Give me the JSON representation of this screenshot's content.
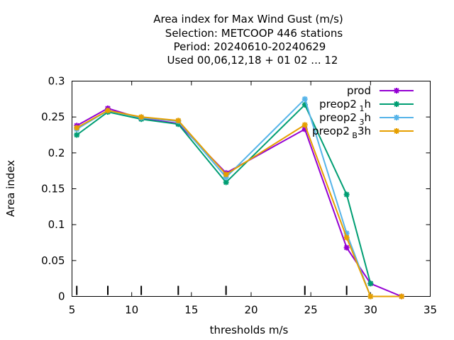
{
  "chart_data": {
    "type": "line",
    "title_lines": [
      "Area index  for Max Wind Gust (m/s)",
      "Selection: METCOOP    446 stations",
      "Period: 20240610-20240629",
      "Used  00,06,12,18 + 01 02 ... 12"
    ],
    "xlabel": "thresholds m/s",
    "ylabel": "Area index",
    "xlim": [
      5,
      35
    ],
    "ylim": [
      0,
      0.3
    ],
    "x_ticks": [
      "5",
      "10",
      "15",
      "20",
      "25",
      "30",
      "35"
    ],
    "y_ticks": [
      "0",
      "0.05",
      "0.1",
      "0.15",
      "0.2",
      "0.25",
      "0.3"
    ],
    "threshold_markers": [
      5.4,
      8.0,
      10.8,
      13.9,
      17.9,
      24.5,
      28.0
    ],
    "legend_position": "top-right",
    "series": [
      {
        "name": "prod",
        "legend_main": "prod",
        "legend_sub": "",
        "legend_tail": "",
        "color": "#9400d3",
        "x": [
          5.4,
          8.0,
          10.8,
          13.9,
          17.9,
          24.5,
          28.0,
          30.0,
          32.6
        ],
        "y": [
          0.238,
          0.262,
          0.248,
          0.241,
          0.172,
          0.233,
          0.068,
          0.018,
          0.0
        ]
      },
      {
        "name": "preop2_1h",
        "legend_main": "preop2",
        "legend_sub": "1",
        "legend_tail": "h",
        "color": "#009e73",
        "x": [
          5.4,
          8.0,
          10.8,
          13.9,
          17.9,
          24.5,
          28.0,
          30.0
        ],
        "y": [
          0.225,
          0.257,
          0.247,
          0.24,
          0.159,
          0.267,
          0.142,
          0.018
        ]
      },
      {
        "name": "preop2_3h",
        "legend_main": "preop2",
        "legend_sub": "3",
        "legend_tail": "h",
        "color": "#56b4e9",
        "x": [
          5.4,
          8.0,
          10.8,
          13.9,
          17.9,
          24.5,
          28.0,
          30.0
        ],
        "y": [
          0.233,
          0.259,
          0.249,
          0.244,
          0.166,
          0.275,
          0.088,
          0.0
        ]
      },
      {
        "name": "preop2_B3h",
        "legend_main": "preop2",
        "legend_sub": "B",
        "legend_tail": "3h",
        "color": "#e69f00",
        "x": [
          5.4,
          8.0,
          10.8,
          13.9,
          17.9,
          24.5,
          28.0,
          30.0,
          32.6
        ],
        "y": [
          0.235,
          0.259,
          0.25,
          0.245,
          0.17,
          0.239,
          0.082,
          0.0,
          0.0
        ]
      }
    ]
  }
}
